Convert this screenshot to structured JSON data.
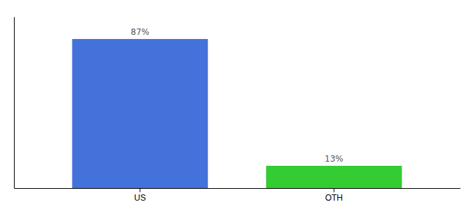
{
  "chart_data": {
    "type": "bar",
    "categories": [
      "US",
      "OTH"
    ],
    "values": [
      87,
      13
    ],
    "value_labels": [
      "87%",
      "13%"
    ],
    "colors": [
      "#4472db",
      "#33cc33"
    ],
    "ylim": [
      0,
      100
    ],
    "data_labels": true,
    "tick_labels": "x"
  }
}
